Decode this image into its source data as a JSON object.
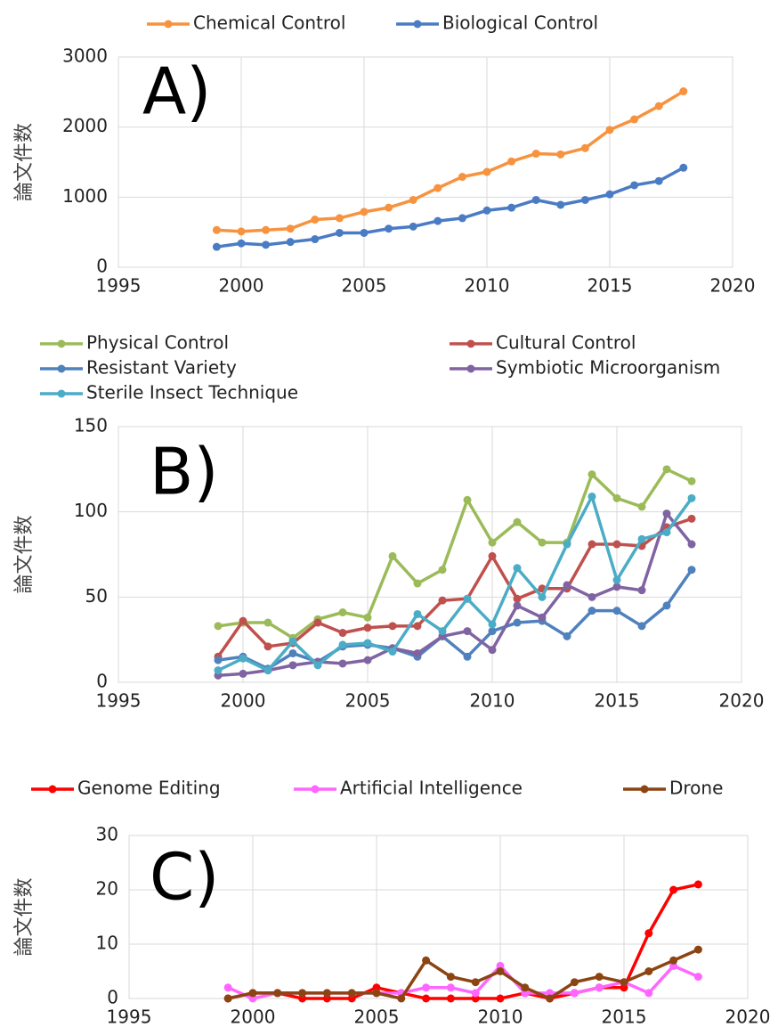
{
  "chart_data": [
    {
      "type": "line",
      "annotation": "A)",
      "ylabel": "論文件数",
      "x": [
        1999,
        2000,
        2001,
        2002,
        2003,
        2004,
        2005,
        2006,
        2007,
        2008,
        2009,
        2010,
        2011,
        2012,
        2013,
        2014,
        2015,
        2016,
        2017,
        2018
      ],
      "xlim": [
        1995,
        2020
      ],
      "xticks": [
        1995,
        2000,
        2005,
        2010,
        2015,
        2020
      ],
      "ylim": [
        0,
        3000
      ],
      "yticks": [
        0,
        1000,
        2000,
        3000
      ],
      "grid": true,
      "series": [
        {
          "name": "Chemical Control",
          "color": "#f7933f",
          "values": [
            530,
            510,
            530,
            550,
            680,
            700,
            790,
            850,
            960,
            1130,
            1290,
            1360,
            1510,
            1620,
            1610,
            1700,
            1960,
            2110,
            2300,
            2510
          ]
        },
        {
          "name": "Biological Control",
          "color": "#4a7cc4",
          "values": [
            290,
            340,
            320,
            360,
            400,
            490,
            490,
            550,
            580,
            660,
            700,
            810,
            850,
            960,
            890,
            960,
            1040,
            1170,
            1230,
            1420
          ]
        }
      ]
    },
    {
      "type": "line",
      "annotation": "B)",
      "ylabel": "論文件数",
      "x": [
        1999,
        2000,
        2001,
        2002,
        2003,
        2004,
        2005,
        2006,
        2007,
        2008,
        2009,
        2010,
        2011,
        2012,
        2013,
        2014,
        2015,
        2016,
        2017,
        2018
      ],
      "xlim": [
        1995,
        2020
      ],
      "xticks": [
        1995,
        2000,
        2005,
        2010,
        2015,
        2020
      ],
      "ylim": [
        0,
        150
      ],
      "yticks": [
        0,
        50,
        100,
        150
      ],
      "grid": true,
      "series": [
        {
          "name": "Physical Control",
          "color": "#9bbb59",
          "values": [
            33,
            35,
            35,
            26,
            37,
            41,
            38,
            74,
            58,
            66,
            107,
            82,
            94,
            82,
            82,
            122,
            108,
            103,
            125,
            118
          ]
        },
        {
          "name": "Cultural Control",
          "color": "#c0504d",
          "values": [
            15,
            36,
            21,
            23,
            35,
            29,
            32,
            33,
            33,
            48,
            49,
            74,
            49,
            55,
            55,
            81,
            81,
            80,
            91,
            96
          ]
        },
        {
          "name": "Resistant Variety",
          "color": "#4f81bd",
          "values": [
            13,
            15,
            8,
            17,
            12,
            21,
            22,
            20,
            15,
            27,
            15,
            30,
            35,
            36,
            27,
            42,
            42,
            33,
            45,
            66
          ]
        },
        {
          "name": "Symbiotic Microorganism",
          "color": "#8064a2",
          "values": [
            4,
            5,
            7,
            10,
            12,
            11,
            13,
            20,
            17,
            27,
            30,
            19,
            45,
            38,
            57,
            50,
            56,
            54,
            99,
            81
          ]
        },
        {
          "name": "Sterile Insect Technique",
          "color": "#4bacc6",
          "values": [
            7,
            14,
            7,
            24,
            10,
            22,
            23,
            18,
            40,
            30,
            49,
            34,
            67,
            50,
            81,
            109,
            60,
            84,
            88,
            108
          ]
        }
      ]
    },
    {
      "type": "line",
      "annotation": "C)",
      "ylabel": "論文件数",
      "x": [
        1999,
        2000,
        2001,
        2002,
        2003,
        2004,
        2005,
        2006,
        2007,
        2008,
        2009,
        2010,
        2011,
        2012,
        2013,
        2014,
        2015,
        2016,
        2017,
        2018
      ],
      "xlim": [
        1995,
        2020
      ],
      "xticks": [
        1995,
        2000,
        2005,
        2010,
        2015,
        2020
      ],
      "ylim": [
        0,
        30
      ],
      "yticks": [
        0,
        10,
        20,
        30
      ],
      "grid": true,
      "series": [
        {
          "name": "Genome Editing",
          "color": "#ff0000",
          "values": [
            0,
            1,
            1,
            0,
            0,
            0,
            2,
            1,
            0,
            0,
            0,
            0,
            1,
            0,
            1,
            2,
            2,
            12,
            20,
            21
          ]
        },
        {
          "name": "Artificial Intelligence",
          "color": "#ff66ff",
          "values": [
            2,
            0,
            1,
            1,
            1,
            1,
            1,
            1,
            2,
            2,
            1,
            6,
            1,
            1,
            1,
            2,
            3,
            1,
            6,
            4
          ]
        },
        {
          "name": "Drone",
          "color": "#8b4513",
          "values": [
            0,
            1,
            1,
            1,
            1,
            1,
            1,
            0,
            7,
            4,
            3,
            5,
            2,
            0,
            3,
            4,
            3,
            5,
            7,
            9
          ]
        }
      ]
    }
  ]
}
